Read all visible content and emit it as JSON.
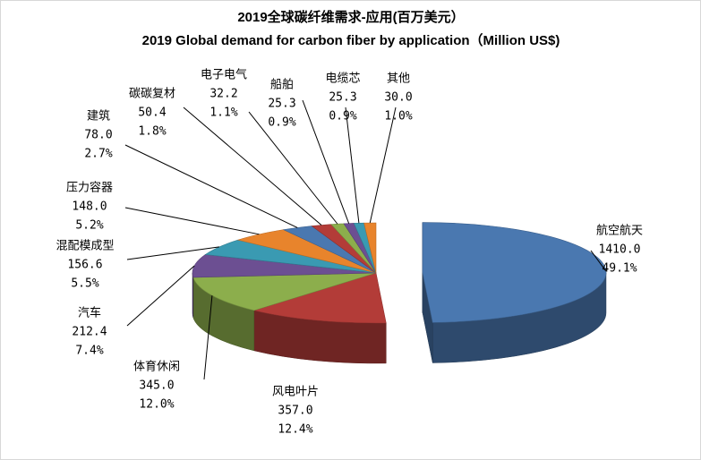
{
  "chart_data": {
    "type": "pie3d",
    "title": "2019全球碳纤维需求-应用(百万美元）",
    "subtitle": "2019 Global demand for carbon fiber by application（Million US$)",
    "categories": [
      "航空航天",
      "风电叶片",
      "体育休闲",
      "汽车",
      "混配模成型",
      "压力容器",
      "建筑",
      "碳碳复材",
      "电子电气",
      "船舶",
      "电缆芯",
      "其他"
    ],
    "values": [
      1410.0,
      357.0,
      345.0,
      212.4,
      156.6,
      148.0,
      78.0,
      50.4,
      32.2,
      25.3,
      25.3,
      30.0
    ],
    "value_labels": [
      "1410.0",
      "357.0",
      "345.0",
      "212.4",
      "156.6",
      "148.0",
      "78.0",
      "50.4",
      "32.2",
      "25.3",
      "25.3",
      "30.0"
    ],
    "percent_labels": [
      "49.1%",
      "12.4%",
      "12.0%",
      "7.4%",
      "5.5%",
      "5.2%",
      "2.7%",
      "1.8%",
      "1.1%",
      "0.9%",
      "0.9%",
      "1.0%"
    ],
    "colors": [
      "#4a78b0",
      "#b33c38",
      "#8cae4c",
      "#6c4f92",
      "#3a9ab2",
      "#e8842c",
      "#4a78b0",
      "#b33c38",
      "#8cae4c",
      "#6c4f92",
      "#3a9ab2",
      "#e8842c"
    ]
  }
}
